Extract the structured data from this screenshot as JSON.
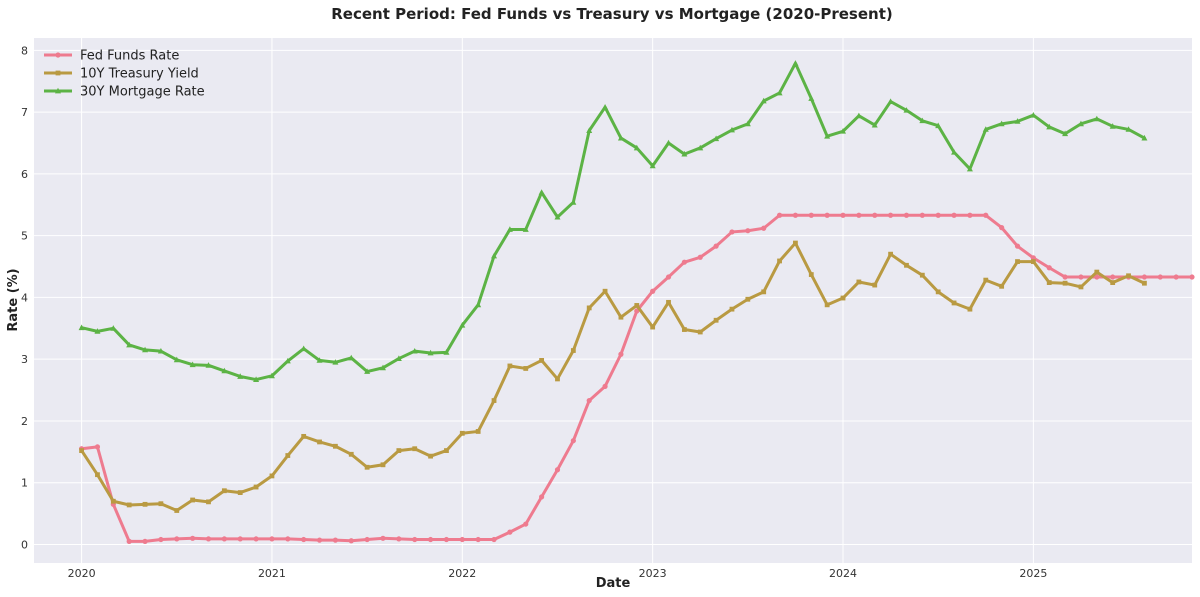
{
  "chart_data": {
    "type": "line",
    "title": "Recent Period: Fed Funds vs Treasury vs Mortgage (2020-Present)",
    "xlabel": "Date",
    "ylabel": "Rate (%)",
    "x_start": "2020-01",
    "x_step": "month",
    "xlim": [
      "2019-10",
      "2025-11"
    ],
    "ylim": [
      -0.3,
      8.2
    ],
    "x_ticks": [
      "2020",
      "2021",
      "2022",
      "2023",
      "2024",
      "2025"
    ],
    "y_ticks": [
      "0",
      "1",
      "2",
      "3",
      "4",
      "5",
      "6",
      "7",
      "8"
    ],
    "grid": true,
    "legend_position": "top-left",
    "background_color": "#eaeaf2",
    "series": [
      {
        "name": "Fed Funds Rate",
        "color": "#ee7b8f",
        "marker": "circle",
        "values": [
          1.55,
          1.58,
          0.65,
          0.05,
          0.05,
          0.08,
          0.09,
          0.1,
          0.09,
          0.09,
          0.09,
          0.09,
          0.09,
          0.09,
          0.08,
          0.07,
          0.07,
          0.06,
          0.08,
          0.1,
          0.09,
          0.08,
          0.08,
          0.08,
          0.08,
          0.08,
          0.08,
          0.2,
          0.33,
          0.77,
          1.21,
          1.68,
          2.33,
          2.56,
          3.08,
          3.78,
          4.1,
          4.33,
          4.57,
          4.65,
          4.83,
          5.06,
          5.08,
          5.12,
          5.33,
          5.33,
          5.33,
          5.33,
          5.33,
          5.33,
          5.33,
          5.33,
          5.33,
          5.33,
          5.33,
          5.33,
          5.33,
          5.33,
          5.13,
          4.83,
          4.64,
          4.48,
          4.33,
          4.33,
          4.33,
          4.33,
          4.33,
          4.33,
          4.33,
          4.33,
          4.33
        ]
      },
      {
        "name": "10Y Treasury Yield",
        "color": "#b99a42",
        "marker": "square",
        "values": [
          1.52,
          1.13,
          0.7,
          0.64,
          0.65,
          0.66,
          0.55,
          0.72,
          0.69,
          0.87,
          0.84,
          0.93,
          1.11,
          1.44,
          1.75,
          1.66,
          1.59,
          1.46,
          1.25,
          1.29,
          1.52,
          1.55,
          1.43,
          1.52,
          1.8,
          1.83,
          2.33,
          2.89,
          2.85,
          2.98,
          2.68,
          3.14,
          3.83,
          4.1,
          3.68,
          3.87,
          3.52,
          3.92,
          3.48,
          3.44,
          3.63,
          3.81,
          3.97,
          4.09,
          4.59,
          4.88,
          4.37,
          3.88,
          3.99,
          4.25,
          4.2,
          4.7,
          4.52,
          4.36,
          4.09,
          3.91,
          3.81,
          4.28,
          4.18,
          4.58,
          4.58,
          4.24,
          4.23,
          4.17,
          4.41,
          4.24,
          4.35,
          4.23
        ]
      },
      {
        "name": "30Y Mortgage Rate",
        "color": "#5cb345",
        "marker": "triangle",
        "values": [
          3.51,
          3.45,
          3.5,
          3.23,
          3.15,
          3.13,
          2.99,
          2.91,
          2.9,
          2.81,
          2.72,
          2.67,
          2.73,
          2.97,
          3.17,
          2.98,
          2.95,
          3.02,
          2.8,
          2.86,
          3.01,
          3.13,
          3.1,
          3.11,
          3.55,
          3.88,
          4.67,
          5.1,
          5.1,
          5.7,
          5.3,
          5.54,
          6.7,
          7.08,
          6.58,
          6.42,
          6.13,
          6.5,
          6.32,
          6.42,
          6.57,
          6.71,
          6.81,
          7.18,
          7.31,
          7.79,
          7.22,
          6.61,
          6.69,
          6.94,
          6.79,
          7.17,
          7.03,
          6.86,
          6.78,
          6.35,
          6.08,
          6.72,
          6.81,
          6.85,
          6.95,
          6.76,
          6.65,
          6.81,
          6.89,
          6.77,
          6.72,
          6.58
        ]
      }
    ]
  }
}
